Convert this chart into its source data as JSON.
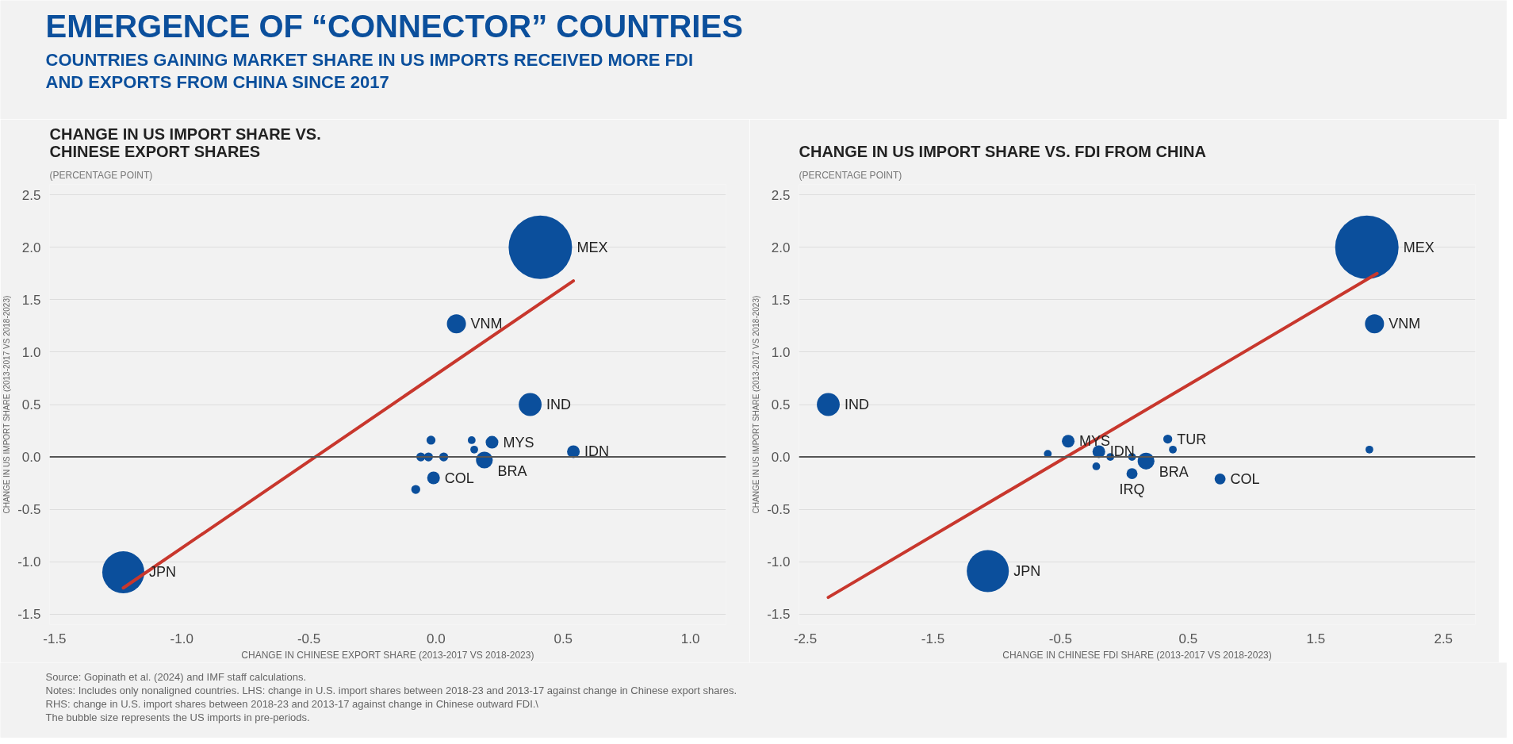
{
  "chart_data": [
    {
      "type": "other",
      "title": "EMERGENCE OF “CONNECTOR” COUNTRIES",
      "subtitle": "COUNTRIES GAINING MARKET SHARE IN US IMPORTS RECEIVED MORE FDI\nAND EXPORTS FROM CHINA SINCE 2017"
    },
    {
      "type": "bubble",
      "title": "CHANGE IN US IMPORT SHARE VS.\nCHINESE EXPORT SHARES",
      "subtitle": "(PERCENTAGE POINT)",
      "xlabel": "CHANGE IN CHINESE EXPORT SHARE (2013-2017 VS 2018-2023)",
      "ylabel": "CHANGE IN US IMPORT SHARE (2013-2017 VS 2018-2023)",
      "xlim": [
        -1.52,
        1.14
      ],
      "ylim": [
        -1.6,
        2.6
      ],
      "xticks": [
        -1.5,
        {
          "value": -1,
          "label": "-1.0"
        },
        -0.5,
        {
          "value": 0,
          "label": "0.0"
        },
        0.5,
        {
          "value": 1,
          "label": "1.0"
        }
      ],
      "yticks": [
        -1.5,
        {
          "value": -1,
          "label": "-1.0"
        },
        -0.5,
        {
          "value": 0,
          "label": "0.0"
        },
        0.5,
        {
          "value": 1,
          "label": "1.0"
        },
        1.5,
        {
          "value": 2,
          "label": "2.0"
        },
        2.5
      ],
      "grid": "y",
      "ref_lines": [
        {
          "axis": "y",
          "value": 0,
          "color": "#555555"
        }
      ],
      "series": [
        {
          "type": "bubble",
          "color": "#0b4f9c",
          "x": [
            0.41,
            0.08,
            0.37,
            0.22,
            0.54,
            0.19,
            -0.01,
            -1.23,
            -0.08,
            -0.02,
            -0.03,
            0.03,
            -0.06,
            0.14,
            0.15
          ],
          "values": [
            2.0,
            1.27,
            0.5,
            0.14,
            0.05,
            -0.03,
            -0.2,
            -1.1,
            -0.31,
            0.16,
            0.0,
            0.0,
            0.0,
            0.16,
            0.07
          ],
          "sizes": [
            1,
            0.09,
            0.13,
            0.04,
            0.04,
            0.07,
            0.04,
            0.44,
            0.02,
            0.02,
            0.02,
            0.02,
            0.02,
            0.015,
            0.015
          ]
        },
        {
          "type": "line",
          "color": "#c8372d",
          "x": [
            -1.23,
            0.54
          ],
          "values": [
            -1.25,
            1.68
          ]
        }
      ],
      "annotations": [
        {
          "text": "MEX",
          "x": 0.41,
          "y": 2.0
        },
        {
          "text": "VNM",
          "x": 0.08,
          "y": 1.27
        },
        {
          "text": "IND",
          "x": 0.37,
          "y": 0.5
        },
        {
          "text": "MYS",
          "x": 0.22,
          "y": 0.14
        },
        {
          "text": "IDN",
          "x": 0.54,
          "y": 0.05
        },
        {
          "text": "BRA",
          "x": 0.19,
          "y": -0.03
        },
        {
          "text": "COL",
          "x": -0.01,
          "y": -0.2
        },
        {
          "text": "JPN",
          "x": -1.23,
          "y": -1.1
        }
      ]
    },
    {
      "type": "bubble",
      "title": "CHANGE IN US IMPORT SHARE VS. FDI FROM CHINA",
      "subtitle": "(PERCENTAGE POINT)",
      "xlabel": "CHANGE IN CHINESE FDI SHARE (2013-2017 VS 2018-2023)",
      "ylabel": "CHANGE IN US IMPORT SHARE (2013-2017 VS 2018-2023)",
      "xlim": [
        -2.55,
        2.75
      ],
      "ylim": [
        -1.6,
        2.6
      ],
      "xticks": [
        -2.5,
        -1.5,
        -0.5,
        0.5,
        1.5,
        2.5
      ],
      "yticks": [
        -1.5,
        {
          "value": -1,
          "label": "-1.0"
        },
        -0.5,
        {
          "value": 0,
          "label": "0.0"
        },
        0.5,
        {
          "value": 1,
          "label": "1.0"
        },
        1.5,
        {
          "value": 2,
          "label": "2.0"
        },
        2.5
      ],
      "grid": "y",
      "ref_lines": [
        {
          "axis": "y",
          "value": 0,
          "color": "#555555"
        }
      ],
      "series": [
        {
          "type": "bubble",
          "color": "#0b4f9c",
          "x": [
            1.9,
            1.96,
            -2.32,
            -0.44,
            -0.2,
            0.17,
            0.06,
            0.34,
            0.75,
            -1.07,
            1.92,
            -0.6,
            -0.22,
            0.38,
            -0.11,
            0.06
          ],
          "values": [
            2.0,
            1.27,
            0.5,
            0.15,
            0.05,
            -0.04,
            -0.16,
            0.17,
            -0.21,
            -1.09,
            0.07,
            0.03,
            -0.09,
            0.07,
            0.0,
            0.0
          ],
          "sizes": [
            1,
            0.09,
            0.13,
            0.04,
            0.04,
            0.07,
            0.03,
            0.02,
            0.03,
            0.44,
            0.015,
            0.015,
            0.015,
            0.015,
            0.015,
            0.015
          ]
        },
        {
          "type": "line",
          "color": "#c8372d",
          "x": [
            -2.32,
            1.98
          ],
          "values": [
            -1.34,
            1.75
          ]
        }
      ],
      "annotations": [
        {
          "text": "MEX",
          "x": 1.9,
          "y": 2.0
        },
        {
          "text": "VNM",
          "x": 1.96,
          "y": 1.27
        },
        {
          "text": "IND",
          "x": -2.32,
          "y": 0.5
        },
        {
          "text": "MYS",
          "x": -0.44,
          "y": 0.15
        },
        {
          "text": "IDN",
          "x": -0.2,
          "y": 0.05
        },
        {
          "text": "BRA",
          "x": 0.17,
          "y": -0.04
        },
        {
          "text": "IRQ",
          "x": 0.06,
          "y": -0.16
        },
        {
          "text": "TUR",
          "x": 0.34,
          "y": 0.17
        },
        {
          "text": "COL",
          "x": 0.75,
          "y": -0.21
        },
        {
          "text": "JPN",
          "x": -1.07,
          "y": -1.09
        }
      ]
    },
    {
      "type": "other",
      "annotations": [
        "Source: Gopinath et al. (2024) and IMF staff calculations.",
        "Notes: Includes only nonaligned countries. LHS: change in U.S. import shares between 2018-23 and 2013-17 against change in Chinese export shares.",
        "RHS: change in U.S. import shares between 2018-23 and 2013-17 against change in Chinese outward FDI.\\",
        "The bubble size represents the US imports in pre-periods."
      ]
    }
  ]
}
